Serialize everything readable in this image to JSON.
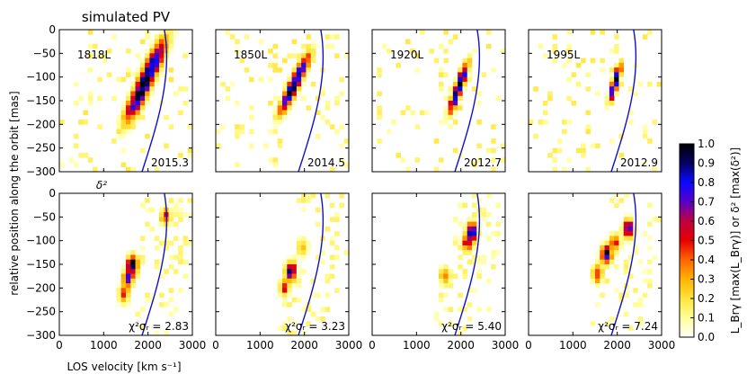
{
  "chart_data": {
    "type": "heatmap",
    "title": "simulated PV",
    "xlabel": "LOS velocity [km s⁻¹]",
    "ylabel": "relative position along the orbit [mas]",
    "xlim": [
      0,
      3000
    ],
    "ylim": [
      -300,
      0
    ],
    "xticks": [
      0,
      1000,
      2000,
      3000
    ],
    "yticks": [
      0,
      -50,
      -100,
      -150,
      -200,
      -250,
      -300
    ],
    "row_labels": {
      "bottom_curve_label": "δ²"
    },
    "colorbar": {
      "label": "L_Brγ [max(L_Brγ)] or δ² [max(δ²)]",
      "min": 0.0,
      "max": 1.0,
      "ticks": [
        "1.0",
        "0.9",
        "0.8",
        "0.7",
        "0.6",
        "0.5",
        "0.4",
        "0.3",
        "0.2",
        "0.1",
        "0.0"
      ],
      "colormap": [
        "#ffffff",
        "#ffff99",
        "#ffe43c",
        "#ffb400",
        "#ff6400",
        "#e60000",
        "#c00040",
        "#5a00c8",
        "#0a0aff",
        "#050064",
        "#000000"
      ]
    },
    "curve_color": "#1010cc",
    "top_row": [
      {
        "model": "1818L",
        "epoch": "2015.3",
        "blob": {
          "v": [
            1700,
            2200
          ],
          "pos": [
            -160,
            -55
          ],
          "width": 170,
          "spread_pos": 32
        }
      },
      {
        "model": "1850L",
        "epoch": "2014.5",
        "blob": {
          "v": [
            1600,
            1950
          ],
          "pos": [
            -150,
            -80
          ],
          "width": 120,
          "spread_pos": 28
        }
      },
      {
        "model": "1920L",
        "epoch": "2012.7",
        "blob": {
          "v": [
            1850,
            2050
          ],
          "pos": [
            -150,
            -95
          ],
          "width": 90,
          "spread_pos": 25
        }
      },
      {
        "model": "1995L",
        "epoch": "2012.9",
        "blob": {
          "v": [
            1900,
            2000
          ],
          "pos": [
            -130,
            -95
          ],
          "width": 70,
          "spread_pos": 22
        }
      }
    ],
    "bottom_row": [
      {
        "chi_label": "χ²σᵣ = 2.83",
        "chi_value": 2.83,
        "clumps": [
          {
            "v": 1650,
            "pos": -150,
            "s": 1.0
          },
          {
            "v": 1550,
            "pos": -180,
            "s": 0.7
          },
          {
            "v": 1450,
            "pos": -215,
            "s": 0.45
          },
          {
            "v": 2400,
            "pos": -50,
            "s": 0.5
          }
        ]
      },
      {
        "chi_label": "χ²σᵣ = 3.23",
        "chi_value": 3.23,
        "clumps": [
          {
            "v": 1700,
            "pos": -165,
            "s": 1.0
          },
          {
            "v": 1550,
            "pos": -200,
            "s": 0.45
          },
          {
            "v": 1950,
            "pos": -115,
            "s": 0.35
          }
        ]
      },
      {
        "chi_label": "χ²σᵣ = 5.40",
        "chi_value": 5.4,
        "clumps": [
          {
            "v": 2250,
            "pos": -80,
            "s": 1.0
          },
          {
            "v": 2150,
            "pos": -105,
            "s": 0.6
          },
          {
            "v": 1650,
            "pos": -175,
            "s": 0.45
          }
        ]
      },
      {
        "chi_label": "χ²σᵣ = 7.24",
        "chi_value": 7.24,
        "clumps": [
          {
            "v": 1750,
            "pos": -130,
            "s": 1.0
          },
          {
            "v": 2250,
            "pos": -75,
            "s": 0.9
          },
          {
            "v": 1550,
            "pos": -170,
            "s": 0.55
          },
          {
            "v": 1950,
            "pos": -105,
            "s": 0.5
          }
        ]
      }
    ]
  }
}
